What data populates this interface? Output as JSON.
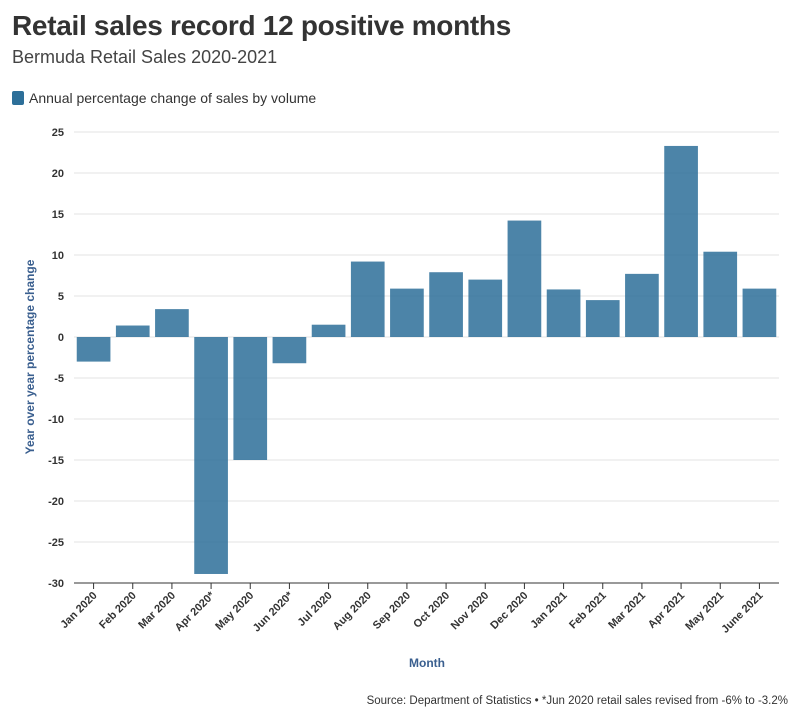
{
  "title": "Retail sales record 12 positive months",
  "subtitle": "Bermuda Retail Sales 2020-2021",
  "legend": {
    "label": "Annual percentage change of sales by volume",
    "color": "#2d6f99"
  },
  "source": "Source: Department of Statistics • *Jun 2020 retail sales revised from -6% to -3.2%",
  "chart_data": {
    "type": "bar",
    "categories": [
      "Jan 2020",
      "Feb 2020",
      "Mar 2020",
      "Apr 2020*",
      "May 2020",
      "Jun 2020*",
      "Jul 2020",
      "Aug 2020",
      "Sep 2020",
      "Oct 2020",
      "Nov 2020",
      "Dec 2020",
      "Jan 2021",
      "Feb 2021",
      "Mar 2021",
      "Apr 2021",
      "May 2021",
      "June 2021"
    ],
    "series": [
      {
        "name": "Annual percentage change of sales by volume",
        "values": [
          -3.0,
          1.4,
          3.4,
          -28.9,
          -15.0,
          -3.2,
          1.5,
          9.2,
          5.9,
          7.9,
          7.0,
          14.2,
          5.8,
          4.5,
          7.7,
          23.3,
          10.4,
          5.9
        ]
      }
    ],
    "xlabel": "Month",
    "ylabel": "Year over year percentage change",
    "ylim": [
      -30,
      25
    ],
    "yticks": [
      25,
      20,
      15,
      10,
      5,
      0,
      -5,
      -10,
      -15,
      -20,
      -25,
      -30
    ],
    "grid": true,
    "bar_color": "#2d6f99"
  }
}
